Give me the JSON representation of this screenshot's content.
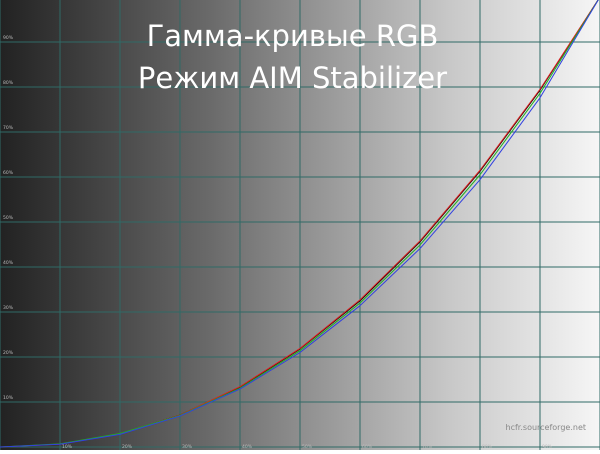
{
  "chart_data": {
    "type": "line",
    "title": "Гамма-кривые RGB",
    "subtitle": "Режим AIM Stabilizer",
    "x": [
      0,
      10,
      20,
      30,
      40,
      50,
      60,
      70,
      80,
      90,
      100
    ],
    "xticks": [
      "10%",
      "20%",
      "30%",
      "40%",
      "50%",
      "60%",
      "70%",
      "80%",
      "90%"
    ],
    "yticks": [
      "10%",
      "20%",
      "30%",
      "40%",
      "50%",
      "60%",
      "70%",
      "80%",
      "90%"
    ],
    "xlim": [
      0,
      100
    ],
    "ylim": [
      0,
      100
    ],
    "grid": true,
    "series": [
      {
        "color": "#000000",
        "values": [
          0,
          0.6,
          2.9,
          7.1,
          13.3,
          21.8,
          32.5,
          45.6,
          61.3,
          79.3,
          100
        ]
      },
      {
        "color": "#e02020",
        "values": [
          0,
          0.6,
          2.9,
          7.1,
          13.4,
          21.9,
          32.7,
          45.8,
          61.5,
          79.5,
          100
        ]
      },
      {
        "color": "#20b020",
        "values": [
          0,
          0.7,
          3.0,
          7.0,
          13.1,
          21.4,
          32.0,
          44.9,
          60.5,
          78.6,
          100
        ]
      },
      {
        "color": "#3040e0",
        "values": [
          0,
          0.6,
          2.8,
          6.9,
          12.9,
          21.0,
          31.4,
          44.1,
          59.4,
          77.6,
          100
        ]
      }
    ],
    "grid_color": "#2f6a66"
  },
  "watermark": "hcfr.sourceforge.net"
}
